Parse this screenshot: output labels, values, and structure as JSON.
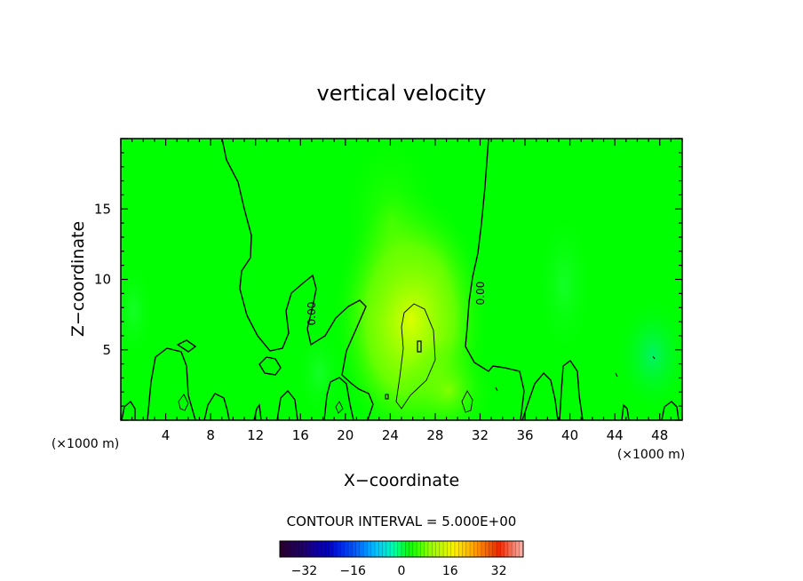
{
  "chart_data": {
    "type": "heatmap",
    "title": "vertical velocity",
    "xlabel": "X−coordinate",
    "ylabel": "Z−coordinate",
    "x_unit_left": "(×1000 m)",
    "x_unit_right": "(×1000 m)",
    "xlim": [
      0,
      50
    ],
    "ylim": [
      0,
      20
    ],
    "x_ticks": [
      4,
      8,
      12,
      16,
      20,
      24,
      28,
      32,
      36,
      40,
      44,
      48
    ],
    "y_ticks": [
      5,
      10,
      15
    ],
    "contour_label": "0.00",
    "contour_interval_text": "CONTOUR INTERVAL = 5.000E+00",
    "colorbar": {
      "min": -40,
      "max": 40,
      "ticks": [
        -32,
        -16,
        0,
        16,
        32
      ],
      "tick_labels": [
        "−32",
        "−16",
        "0",
        "16",
        "32"
      ]
    },
    "features": [
      {
        "kind": "updraft",
        "x": 26.2,
        "z": 5.5,
        "value": 5
      },
      {
        "kind": "updraft",
        "x": 29.0,
        "z": 2.5,
        "value": 2
      },
      {
        "kind": "downdraft",
        "x": 47.0,
        "z": 4.5,
        "value": -2
      }
    ],
    "colors": {
      "background_field": "#00ff00",
      "contour_line": "#000000",
      "updraft_tint": "#e6ff00",
      "downdraft_tint": "#00f080"
    }
  }
}
